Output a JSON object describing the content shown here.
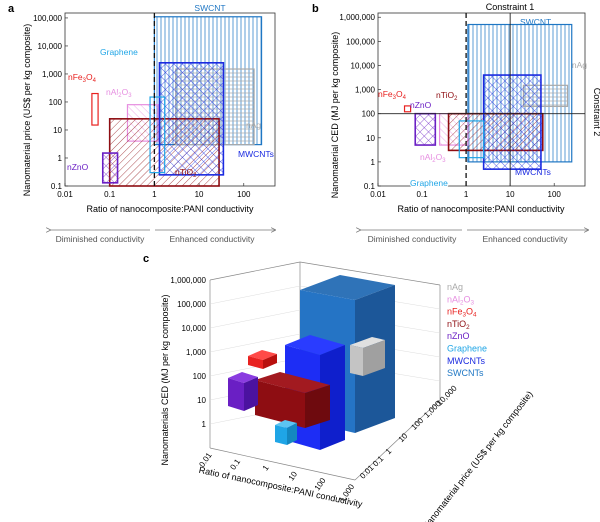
{
  "panels": [
    {
      "letter": "a",
      "ylabel": "Nanomaterial price (US$ per kg composite)",
      "xlabel": "Ratio of nanocomposite:PANI conductivity",
      "yticks": [
        "0.1",
        "1",
        "10",
        "100",
        "1,000",
        "10,000",
        "100,000"
      ],
      "xticks": [
        "0.01",
        "0.1",
        "1",
        "10",
        "100"
      ],
      "left_arrow": "Diminished conductivity",
      "right_arrow": "Enhanced conductivity"
    },
    {
      "letter": "b",
      "ylabel": "Nanomaterial CED (MJ per kg composite)",
      "xlabel": "Ratio of nanocomposite:PANI conductivity",
      "yticks": [
        "0.1",
        "1",
        "10",
        "100",
        "1,000",
        "10,000",
        "100,000",
        "1,000,000"
      ],
      "xticks": [
        "0.01",
        "0.1",
        "1",
        "10",
        "100"
      ],
      "left_arrow": "Diminished conductivity",
      "right_arrow": "Enhanced conductivity",
      "constraint1": "Constraint 1",
      "constraint2": "Constraint 2"
    },
    {
      "letter": "c",
      "zlabel": "Nanomaterials CED (MJ per kg composite)",
      "xlabel": "Ratio of nanocomposite:PANI conductivity",
      "ylabel": "Nanomaterial price (US$ per kg composite)",
      "zticks": [
        "1,000,000",
        "100,000",
        "10,000",
        "1,000",
        "100",
        "10",
        "1"
      ],
      "xticks": [
        "0.01",
        "0.1",
        "1",
        "10",
        "100",
        "1,000"
      ],
      "yticks": [
        "10,000",
        "1,000",
        "100",
        "10",
        "1",
        "0.1",
        "0.01"
      ]
    }
  ],
  "legend": [
    {
      "label": "nAg",
      "color": "#aaaaaa"
    },
    {
      "label": "nAl2O3",
      "color": "#e68ee0"
    },
    {
      "label": "nFe3O4",
      "color": "#e8211f"
    },
    {
      "label": "nTiO2",
      "color": "#8e0d12"
    },
    {
      "label": "nZnO",
      "color": "#6a1fc4"
    },
    {
      "label": "Graphene",
      "color": "#1fa5e6"
    },
    {
      "label": "MWCNTs",
      "color": "#1a2ae0"
    },
    {
      "label": "SWCNTs",
      "color": "#1f77c4"
    }
  ],
  "chart_data": [
    {
      "type": "range-box",
      "title": "",
      "xlabel": "Ratio of nanocomposite:PANI conductivity",
      "ylabel": "Nanomaterial price (US$ per kg composite)",
      "xscale": "log",
      "yscale": "log",
      "xlim": [
        0.01,
        500
      ],
      "ylim": [
        0.1,
        150000
      ],
      "reference_x": 1,
      "series": [
        {
          "name": "SWCNT",
          "x": [
            1,
            250
          ],
          "y": [
            3,
            110000
          ]
        },
        {
          "name": "Graphene",
          "x": [
            0.8,
            1.7
          ],
          "y": [
            0.3,
            150
          ]
        },
        {
          "name": "nFe3O4",
          "x": [
            0.04,
            0.055
          ],
          "y": [
            15,
            200
          ]
        },
        {
          "name": "nAl2O3",
          "x": [
            0.25,
            1.2
          ],
          "y": [
            4,
            80
          ]
        },
        {
          "name": "MWCNTs",
          "x": [
            1.3,
            35
          ],
          "y": [
            0.25,
            2500
          ]
        },
        {
          "name": "nTiO2",
          "x": [
            0.1,
            28
          ],
          "y": [
            0.1,
            25
          ]
        },
        {
          "name": "nZnO",
          "x": [
            0.07,
            0.15
          ],
          "y": [
            0.13,
            1.5
          ]
        },
        {
          "name": "nAg",
          "x": [
            3,
            170
          ],
          "y": [
            3,
            1500
          ]
        }
      ]
    },
    {
      "type": "range-box",
      "title": "",
      "xlabel": "Ratio of nanocomposite:PANI conductivity",
      "ylabel": "Nanomaterial CED (MJ per kg composite)",
      "xscale": "log",
      "yscale": "log",
      "xlim": [
        0.01,
        500
      ],
      "ylim": [
        0.1,
        1500000
      ],
      "reference_x": 1,
      "constraint1_x": 10,
      "constraint2_y": 100,
      "series": [
        {
          "name": "SWCNT",
          "x": [
            1.1,
            250
          ],
          "y": [
            1,
            500000
          ]
        },
        {
          "name": "nFe3O4",
          "x": [
            0.04,
            0.055
          ],
          "y": [
            120,
            210
          ]
        },
        {
          "name": "nZnO",
          "x": [
            0.07,
            0.2
          ],
          "y": [
            5,
            100
          ]
        },
        {
          "name": "nAl2O3",
          "x": [
            0.25,
            1.1
          ],
          "y": [
            5,
            100
          ]
        },
        {
          "name": "nTiO2",
          "x": [
            0.4,
            55
          ],
          "y": [
            3,
            100
          ]
        },
        {
          "name": "MWCNTs",
          "x": [
            2.5,
            50
          ],
          "y": [
            0.5,
            4000
          ]
        },
        {
          "name": "Graphene",
          "x": [
            0.7,
            2.5
          ],
          "y": [
            1.5,
            50
          ]
        },
        {
          "name": "nAg",
          "x": [
            20,
            200
          ],
          "y": [
            200,
            1500
          ]
        }
      ]
    },
    {
      "type": "3d-box",
      "title": "",
      "xlabel": "Ratio of nanocomposite:PANI conductivity",
      "ylabel": "Nanomaterial price (US$ per kg composite)",
      "zlabel": "Nanomaterials CED (MJ per kg composite)",
      "series": [
        "SWCNTs",
        "MWCNTs",
        "nAg",
        "nTiO2",
        "nZnO",
        "nFe3O4",
        "Graphene"
      ]
    }
  ]
}
